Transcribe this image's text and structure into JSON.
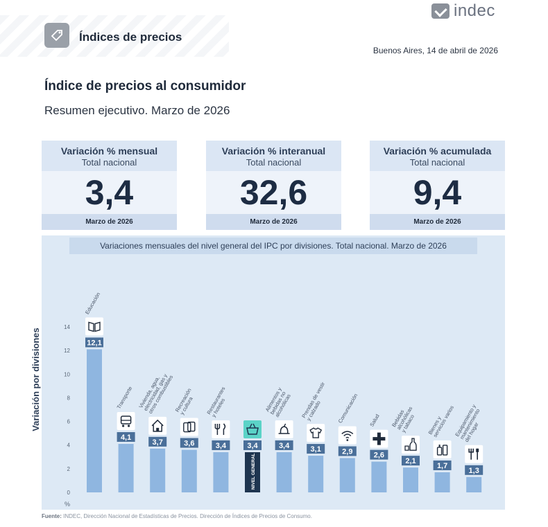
{
  "header": {
    "logo_text": "indec",
    "section_title": "Índices de precios",
    "date": "Buenos Aires, 14 de abril de 2026",
    "title": "Índice de precios al consumidor",
    "subtitle": "Resumen ejecutivo. Marzo de 2026"
  },
  "kpis": [
    {
      "label": "Variación % mensual",
      "scope": "Total nacional",
      "value": "3,4",
      "period": "Marzo de 2026"
    },
    {
      "label": "Variación % interanual",
      "scope": "Total nacional",
      "value": "32,6",
      "period": "Marzo de 2026"
    },
    {
      "label": "Variación % acumulada",
      "scope": "Total nacional",
      "value": "9,4",
      "period": "Marzo de 2026"
    }
  ],
  "source": {
    "label": "Fuente:",
    "text": "INDEC, Dirección Nacional de Estadísticas de Precios. Dirección de Índices de Precios de Consumo."
  },
  "chart_data": {
    "type": "bar",
    "title": "Variaciones mensuales del nivel general del IPC por divisiones. Total nacional. Marzo de 2026",
    "ylabel": "Variación por divisiones",
    "yunit": "%",
    "ylim": [
      0,
      14
    ],
    "yticks": [
      0,
      2,
      4,
      6,
      8,
      10,
      12,
      14
    ],
    "categories": [
      "Educación",
      "Transporte",
      "Vivienda, agua, electricidad, gas y otros combustibles",
      "Recreación y cultura",
      "Restaurantes y hoteles",
      "Nivel general",
      "Alimentos y bebidas no alcohólicas",
      "Prendas de vestir y calzado",
      "Comunicación",
      "Salud",
      "Bebidas alcohólicas y tabaco",
      "Bienes y servicios varios",
      "Equipamiento y mantenimiento del hogar"
    ],
    "category_label_lines": [
      [
        "Educación"
      ],
      [
        "Transporte"
      ],
      [
        "Vivienda, agua,",
        "electricidad, gas y",
        "otros combustibles"
      ],
      [
        "Recreación",
        "y cultura"
      ],
      [
        "Restaurantes",
        "y hoteles"
      ],
      [],
      [
        "Alimentos y",
        "bebidas no",
        "alcohólicas"
      ],
      [
        "Prendas de vestir",
        "y calzado"
      ],
      [
        "Comunicación"
      ],
      [
        "Salud"
      ],
      [
        "Bebidas",
        "alcohólicas",
        "y tabaco"
      ],
      [
        "Bienes y",
        "servicios varios"
      ],
      [
        "Equipamiento y",
        "mantenimiento",
        "del hogar"
      ]
    ],
    "inbar_label": "NIVEL GENERAL",
    "values": [
      12.1,
      4.1,
      3.7,
      3.6,
      3.4,
      3.4,
      3.4,
      3.1,
      2.9,
      2.6,
      2.1,
      1.7,
      1.3
    ],
    "value_labels": [
      "12,1",
      "4,1",
      "3,7",
      "3,6",
      "3,4",
      "3,4",
      "3,4",
      "3,1",
      "2,9",
      "2,6",
      "2,1",
      "1,7",
      "1,3"
    ],
    "icons": [
      "book-icon",
      "bus-icon",
      "house-icon",
      "ticket-icon",
      "cutlery-icon",
      "basket-icon",
      "apple-icon",
      "shirt-icon",
      "wifi-icon",
      "cross-icon",
      "bottle-icon",
      "bottles-icon",
      "tools-icon"
    ],
    "highlight_index": 5,
    "colors": {
      "bar": "#8fb6e0",
      "highlight_bar": "#1e3550",
      "label_bg": "#4a6f99",
      "highlight_icon_bg": "#5bd3c7"
    },
    "grid": false,
    "legend": "none"
  }
}
